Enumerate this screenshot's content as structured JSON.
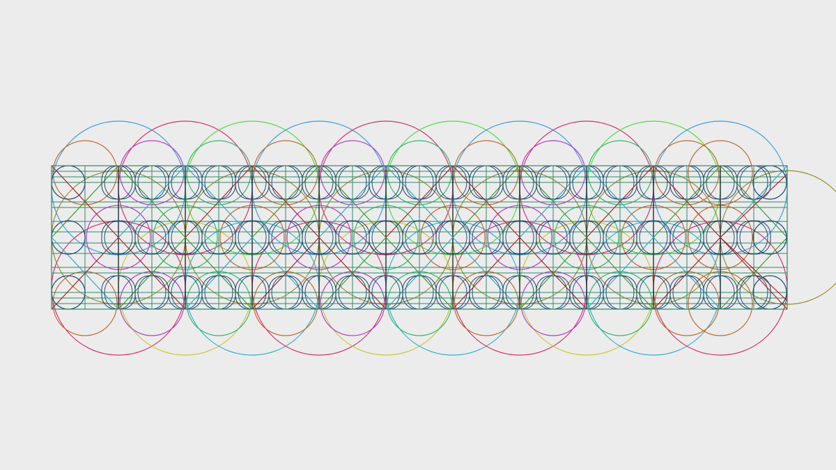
{
  "background": "#ececec",
  "palette": {
    "big_arcs_top": [
      "#3a9ce0",
      "#d42f6f",
      "#4fdc3e",
      "#3a9ce0",
      "#d42f6f",
      "#4fdc3e",
      "#3a9ce0",
      "#d42f6f",
      "#4fdc3e",
      "#3a9ce0"
    ],
    "big_arcs_bottom": [
      "#d42f6f",
      "#c8c832",
      "#33b0cc",
      "#d42f6f",
      "#c8c832",
      "#33b0cc",
      "#d42f6f",
      "#c8c832",
      "#33b0cc",
      "#d42f6f"
    ],
    "medium_circles_top": [
      "#c06a2a",
      "#b43cc8",
      "#2fb86f",
      "#c06a2a",
      "#b43cc8",
      "#2fb86f",
      "#c06a2a",
      "#b43cc8",
      "#2fb86f",
      "#c06a2a"
    ],
    "medium_circles_bottom": [
      "#c06a2a",
      "#b43cc8",
      "#2fb86f",
      "#c06a2a",
      "#b43cc8",
      "#2fb86f",
      "#c06a2a",
      "#b43cc8",
      "#2fb86f",
      "#c06a2a"
    ],
    "grid_lines": "#2e8a6a",
    "grid_dark": "#1f2d3a",
    "small_circles": "#1f4f7a",
    "diagonal_red": "#b02222",
    "diagonal_green": "#3c9a2a",
    "diagonal_cyan": "#2fa8c8",
    "rounded_rect": "#2a4f6a",
    "accent_olive": "#9a8a2a",
    "accent_orange": "#c06a2a",
    "accent_magenta": "#b43cc8"
  },
  "motif": {
    "description_tokens": [
      "circles",
      "grid",
      "diagonals"
    ],
    "columns": 11,
    "rows": 3,
    "arcs": 10
  }
}
